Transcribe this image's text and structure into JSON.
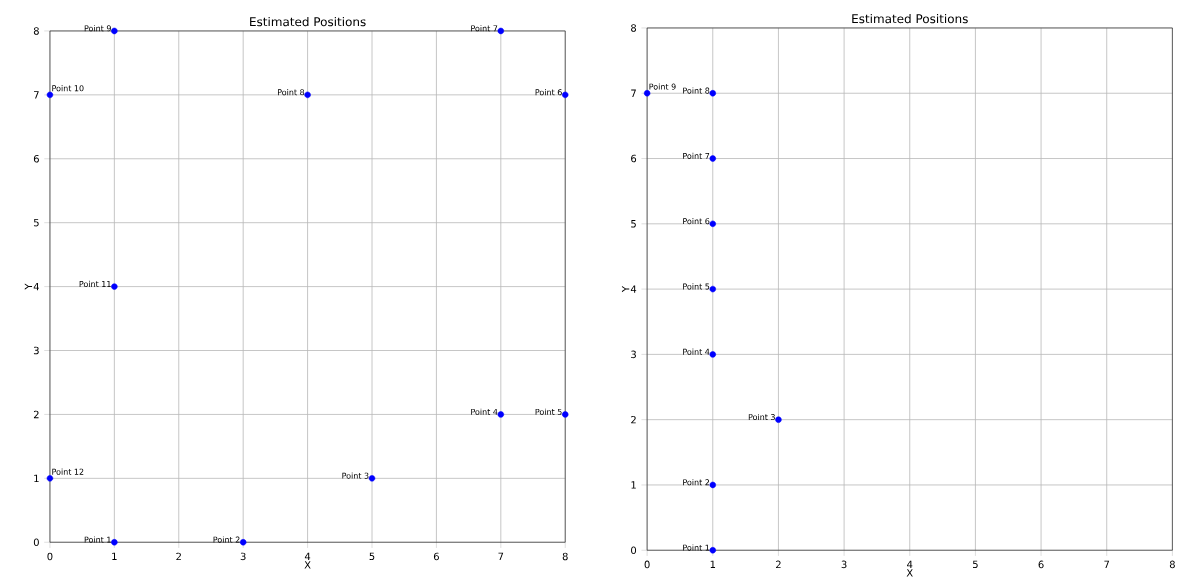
{
  "chart_data": [
    {
      "type": "scatter",
      "title": "Estimated Positions",
      "xlabel": "X",
      "ylabel": "Y",
      "x": [
        1,
        3,
        5,
        7,
        8,
        8,
        7,
        4,
        1,
        0,
        1,
        0
      ],
      "series": [
        {
          "color": "#0000ff",
          "values": [
            0,
            0,
            1,
            2,
            2,
            7,
            8,
            7,
            8,
            7,
            4,
            1
          ]
        }
      ],
      "annotations": [
        {
          "text": "Point 1",
          "x": 1,
          "y": 0
        },
        {
          "text": "Point 2",
          "x": 3,
          "y": 0
        },
        {
          "text": "Point 3",
          "x": 5,
          "y": 1
        },
        {
          "text": "Point 4",
          "x": 7,
          "y": 2
        },
        {
          "text": "Point 5",
          "x": 8,
          "y": 2
        },
        {
          "text": "Point 6",
          "x": 8,
          "y": 7
        },
        {
          "text": "Point 7",
          "x": 7,
          "y": 8
        },
        {
          "text": "Point 8",
          "x": 4,
          "y": 7
        },
        {
          "text": "Point 9",
          "x": 1,
          "y": 8
        },
        {
          "text": "Point 10",
          "x": 0,
          "y": 7
        },
        {
          "text": "Point 11",
          "x": 1,
          "y": 4
        },
        {
          "text": "Point 12",
          "x": 0,
          "y": 1
        }
      ],
      "xlim": [
        0,
        8
      ],
      "ylim": [
        0,
        8
      ],
      "xticks": [
        0,
        1,
        2,
        3,
        4,
        5,
        6,
        7,
        8
      ],
      "yticks": [
        0,
        1,
        2,
        3,
        4,
        5,
        6,
        7,
        8
      ],
      "grid": true,
      "marker": "circle"
    },
    {
      "type": "scatter",
      "title": "Estimated Positions",
      "xlabel": "X",
      "ylabel": "Y",
      "x": [
        1,
        1,
        2,
        1,
        1,
        1,
        1,
        1,
        0
      ],
      "series": [
        {
          "color": "#0000ff",
          "values": [
            0,
            1,
            2,
            3,
            4,
            5,
            6,
            7,
            7
          ]
        }
      ],
      "annotations": [
        {
          "text": "Point 1",
          "x": 1,
          "y": 0
        },
        {
          "text": "Point 2",
          "x": 1,
          "y": 1
        },
        {
          "text": "Point 3",
          "x": 2,
          "y": 2
        },
        {
          "text": "Point 4",
          "x": 1,
          "y": 3
        },
        {
          "text": "Point 5",
          "x": 1,
          "y": 4
        },
        {
          "text": "Point 6",
          "x": 1,
          "y": 5
        },
        {
          "text": "Point 7",
          "x": 1,
          "y": 6
        },
        {
          "text": "Point 8",
          "x": 1,
          "y": 7
        },
        {
          "text": "Point 9",
          "x": 0,
          "y": 7
        }
      ],
      "xlim": [
        0,
        8
      ],
      "ylim": [
        0,
        8
      ],
      "xticks": [
        0,
        1,
        2,
        3,
        4,
        5,
        6,
        7,
        8
      ],
      "yticks": [
        0,
        1,
        2,
        3,
        4,
        5,
        6,
        7,
        8
      ],
      "grid": true,
      "marker": "circle"
    }
  ]
}
